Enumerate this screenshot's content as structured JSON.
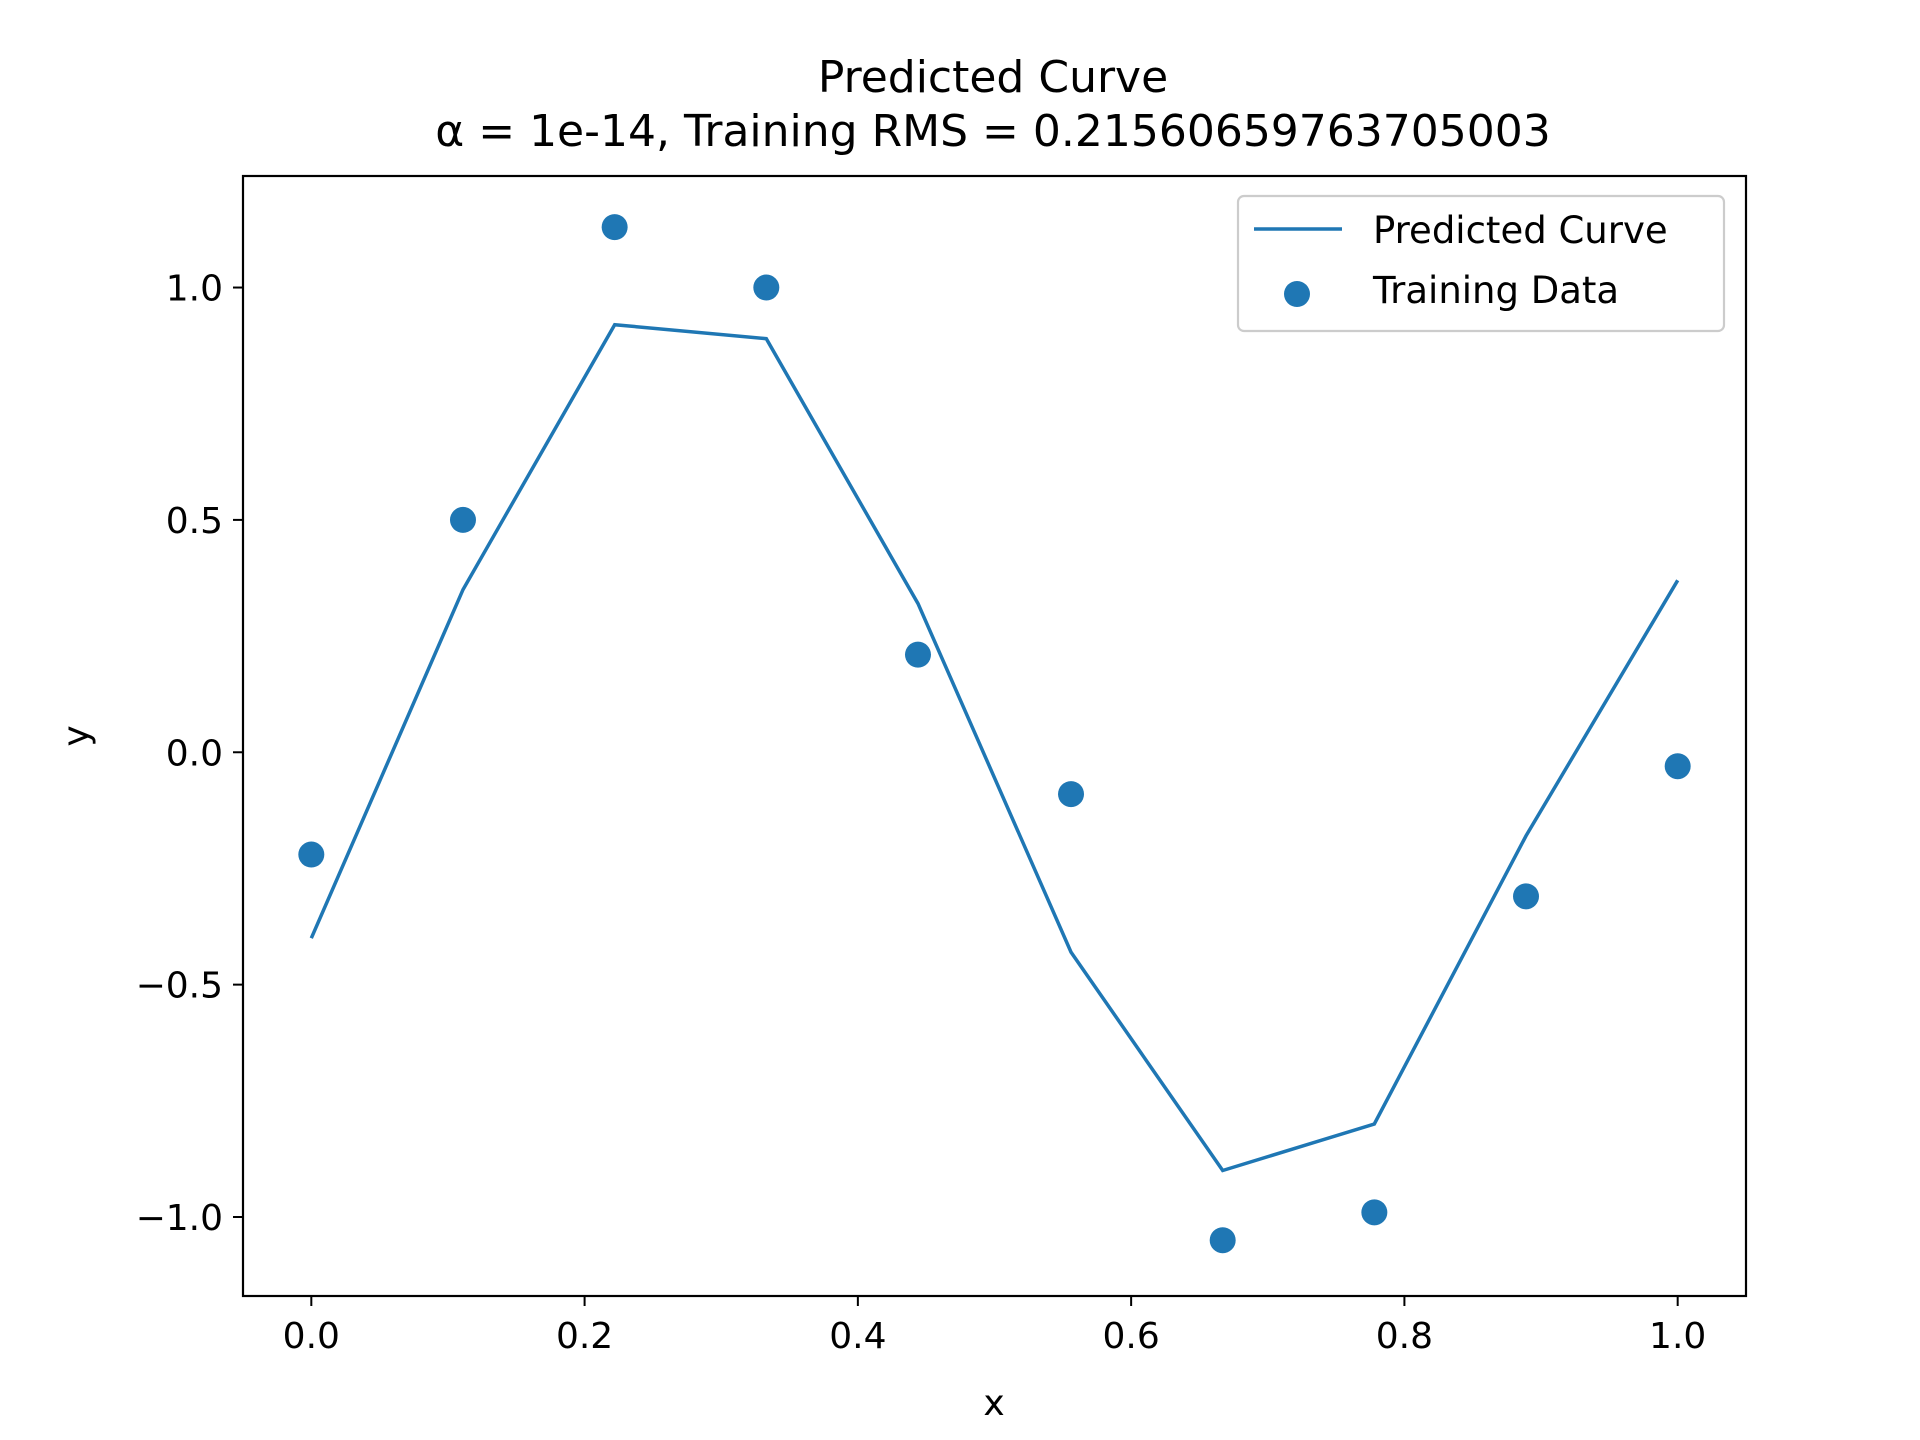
{
  "chart_data": {
    "type": "line",
    "title": "Predicted Curve",
    "subtitle": "α = 1e-14, Training RMS = 0.21560659763705003",
    "xlabel": "x",
    "ylabel": "y",
    "xlim": [
      -0.05,
      1.05
    ],
    "ylim": [
      -1.17,
      1.24
    ],
    "x_ticks": [
      0.0,
      0.2,
      0.4,
      0.6,
      0.8,
      1.0
    ],
    "x_tick_labels": [
      "0.0",
      "0.2",
      "0.4",
      "0.6",
      "0.8",
      "1.0"
    ],
    "y_ticks": [
      1.0,
      0.5,
      0.0,
      -0.5,
      -1.0
    ],
    "y_tick_labels": [
      "1.0",
      "0.5",
      "0.0",
      "−0.5",
      "−1.0"
    ],
    "grid": false,
    "legend_position": "top-right",
    "color": "#1f77b4",
    "series": [
      {
        "name": "Predicted Curve",
        "kind": "line",
        "x": [
          0.0,
          0.111,
          0.222,
          0.333,
          0.444,
          0.556,
          0.667,
          0.778,
          0.889,
          1.0
        ],
        "y": [
          -0.4,
          0.35,
          0.92,
          0.89,
          0.32,
          -0.43,
          -0.9,
          -0.8,
          -0.18,
          0.37
        ]
      },
      {
        "name": "Training Data",
        "kind": "scatter",
        "x": [
          0.0,
          0.111,
          0.222,
          0.333,
          0.444,
          0.556,
          0.667,
          0.778,
          0.889,
          1.0
        ],
        "y": [
          -0.22,
          0.5,
          1.13,
          1.0,
          0.21,
          -0.09,
          -1.05,
          -0.99,
          -0.31,
          -0.03
        ]
      }
    ]
  }
}
